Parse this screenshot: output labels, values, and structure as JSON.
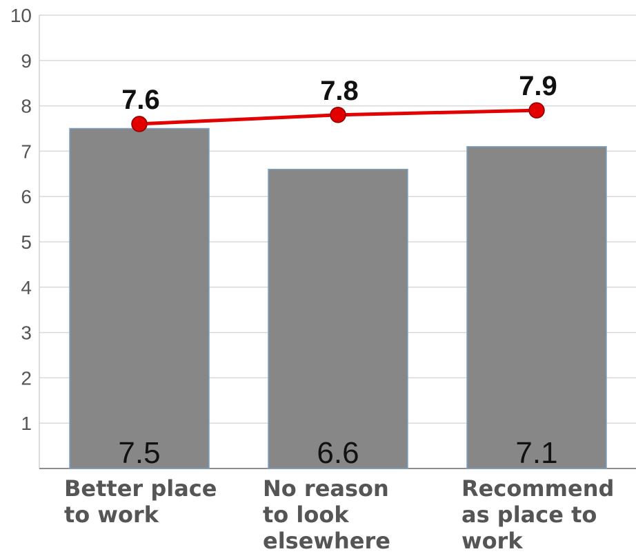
{
  "chart_data": {
    "type": "bar",
    "categories": [
      [
        "Better place",
        "to work"
      ],
      [
        "No reason",
        "to look",
        "elsewhere"
      ],
      [
        "Recommend",
        "as place to",
        "work"
      ]
    ],
    "series": [
      {
        "type": "bar",
        "values": [
          7.5,
          6.6,
          7.1
        ],
        "value_labels": [
          "7.5",
          "6.6",
          "7.1"
        ],
        "color": "#878787"
      },
      {
        "type": "line",
        "values": [
          7.6,
          7.8,
          7.9
        ],
        "value_labels": [
          "7.6",
          "7.8",
          "7.9"
        ],
        "color": "#e30000"
      }
    ],
    "ylim": [
      0,
      10
    ],
    "yticks": [
      "1",
      "2",
      "3",
      "4",
      "5",
      "6",
      "7",
      "8",
      "9",
      "10"
    ],
    "grid": true,
    "legend": "none"
  }
}
